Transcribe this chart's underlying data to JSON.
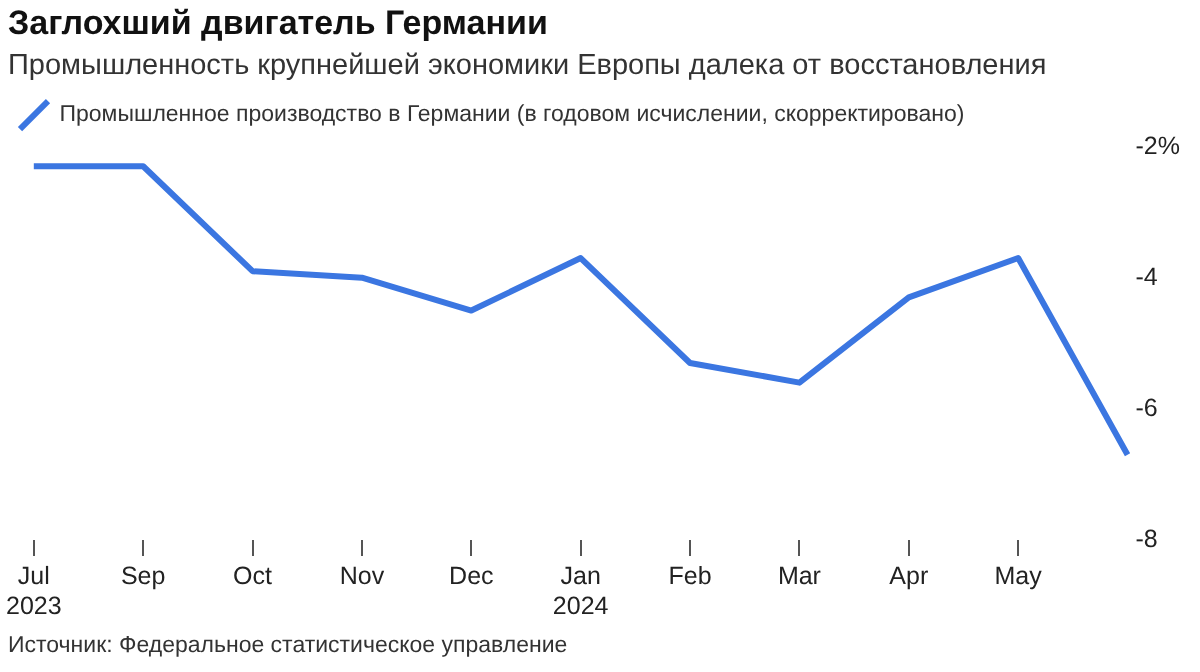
{
  "chart_data": {
    "type": "line",
    "title": "Заглохший двигатель Германии",
    "subtitle": "Промышленность крупнейшей экономики Европы далека от восстановления",
    "categories": [
      "Jul 2023",
      "Sep",
      "Oct",
      "Nov",
      "Dec",
      "Jan 2024",
      "Feb",
      "Mar",
      "Apr",
      "May",
      null
    ],
    "series": [
      {
        "name": "Промышленное производство в Германии (в годовом исчислении, скорректировано)",
        "color": "#3b76e1",
        "values": [
          -2.3,
          -2.3,
          -3.9,
          -4.0,
          -4.5,
          -3.7,
          -5.3,
          -5.6,
          -4.3,
          -3.7,
          -6.7
        ]
      }
    ],
    "ylim": [
      -8,
      -2
    ],
    "yticks": [
      {
        "value": -2,
        "label": "-2%"
      },
      -4,
      -6,
      -8
    ],
    "grid": false,
    "legend": "top left",
    "annotations": [
      "Источник: Федеральное статистическое управление"
    ]
  }
}
